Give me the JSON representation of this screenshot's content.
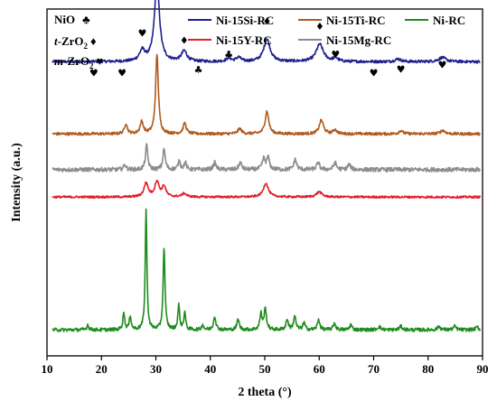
{
  "chart_data": {
    "type": "line",
    "xlabel": "2 theta (°)",
    "ylabel": "Intensity (a.u.)",
    "xlim": [
      10,
      90
    ],
    "xticks": [
      "10",
      "20",
      "30",
      "40",
      "50",
      "60",
      "70",
      "80",
      "90"
    ],
    "phase_key": [
      {
        "phase": "NiO",
        "symbol": "♣"
      },
      {
        "prefix": "t",
        "phase": "-ZrO",
        "sub": "2",
        "symbol": "♦"
      },
      {
        "prefix": "m",
        "phase": "-ZrO",
        "sub": "2",
        "symbol": "♥"
      }
    ],
    "legend": [
      {
        "name": "Ni-15Si-RC",
        "color": "#1f1f8c"
      },
      {
        "name": "Ni-15Ti-RC",
        "color": "#b05a1e"
      },
      {
        "name": "Ni-RC",
        "color": "#1e8c1e"
      },
      {
        "name": "Ni-15Y-RC",
        "color": "#e0202a"
      },
      {
        "name": "Ni-15Mg-RC",
        "color": "#8c8c8c"
      }
    ],
    "series": [
      {
        "name": "Ni-15Si-RC",
        "color": "#1f1f8c",
        "baseline": 0.848,
        "noise": 0.004,
        "peaks": [
          [
            27.5,
            0.03,
            0.6
          ],
          [
            30.2,
            0.23,
            0.55
          ],
          [
            35.2,
            0.03,
            0.6
          ],
          [
            43.4,
            0.01,
            0.5
          ],
          [
            45.2,
            0.012,
            0.5
          ],
          [
            50.4,
            0.065,
            0.7
          ],
          [
            60.1,
            0.05,
            0.8
          ],
          [
            63,
            0.01,
            0.5
          ],
          [
            74.5,
            0.008,
            0.6
          ],
          [
            82.6,
            0.012,
            0.8
          ]
        ]
      },
      {
        "name": "Ni-15Ti-RC",
        "color": "#b05a1e",
        "baseline": 0.64,
        "noise": 0.004,
        "peaks": [
          [
            24.5,
            0.03,
            0.3
          ],
          [
            27.4,
            0.035,
            0.35
          ],
          [
            30.2,
            0.23,
            0.3
          ],
          [
            35.3,
            0.03,
            0.35
          ],
          [
            45.4,
            0.015,
            0.4
          ],
          [
            50.4,
            0.065,
            0.4
          ],
          [
            60.4,
            0.04,
            0.45
          ],
          [
            62.9,
            0.012,
            0.4
          ],
          [
            75,
            0.01,
            0.4
          ],
          [
            82.7,
            0.01,
            0.5
          ]
        ]
      },
      {
        "name": "Ni-15Mg-RC",
        "color": "#8c8c8c",
        "baseline": 0.537,
        "noise": 0.006,
        "peaks": [
          [
            24.3,
            0.015,
            0.25
          ],
          [
            28.3,
            0.07,
            0.25
          ],
          [
            31.5,
            0.06,
            0.25
          ],
          [
            34.3,
            0.025,
            0.25
          ],
          [
            35.4,
            0.02,
            0.25
          ],
          [
            40.8,
            0.02,
            0.3
          ],
          [
            45.5,
            0.02,
            0.3
          ],
          [
            49.8,
            0.03,
            0.3
          ],
          [
            50.6,
            0.035,
            0.3
          ],
          [
            55.6,
            0.03,
            0.3
          ],
          [
            59.8,
            0.02,
            0.3
          ],
          [
            62.9,
            0.02,
            0.3
          ],
          [
            65.5,
            0.015,
            0.3
          ]
        ]
      },
      {
        "name": "Ni-15Y-RC",
        "color": "#e0202a",
        "baseline": 0.458,
        "noise": 0.003,
        "peaks": [
          [
            28.2,
            0.04,
            0.45
          ],
          [
            30.2,
            0.045,
            0.45
          ],
          [
            31.5,
            0.03,
            0.4
          ],
          [
            35.2,
            0.01,
            0.5
          ],
          [
            50.2,
            0.04,
            0.55
          ],
          [
            60,
            0.015,
            0.6
          ]
        ]
      },
      {
        "name": "Ni-RC",
        "color": "#1e8c1e",
        "baseline": 0.075,
        "noise": 0.005,
        "peaks": [
          [
            17.5,
            0.015,
            0.2
          ],
          [
            24.1,
            0.05,
            0.2
          ],
          [
            25.3,
            0.04,
            0.2
          ],
          [
            28.2,
            0.35,
            0.18
          ],
          [
            31.5,
            0.24,
            0.2
          ],
          [
            34.2,
            0.07,
            0.2
          ],
          [
            35.3,
            0.05,
            0.2
          ],
          [
            38.6,
            0.015,
            0.2
          ],
          [
            40.8,
            0.04,
            0.25
          ],
          [
            45.1,
            0.03,
            0.25
          ],
          [
            49.3,
            0.045,
            0.25
          ],
          [
            50.1,
            0.06,
            0.25
          ],
          [
            54.1,
            0.03,
            0.25
          ],
          [
            55.5,
            0.04,
            0.25
          ],
          [
            57.2,
            0.02,
            0.25
          ],
          [
            59.9,
            0.03,
            0.25
          ],
          [
            62.8,
            0.02,
            0.25
          ],
          [
            65.8,
            0.015,
            0.25
          ],
          [
            71,
            0.01,
            0.3
          ],
          [
            75,
            0.01,
            0.3
          ],
          [
            82,
            0.01,
            0.3
          ],
          [
            84.9,
            0.01,
            0.3
          ],
          [
            89,
            0.008,
            0.3
          ]
        ]
      }
    ],
    "markers": [
      {
        "x": 18.6,
        "level": 0.806,
        "symbol": "♥"
      },
      {
        "x": 23.8,
        "level": 0.806,
        "symbol": "♥"
      },
      {
        "x": 27.5,
        "level": 0.92,
        "symbol": "♥"
      },
      {
        "x": 30.2,
        "level": 1.145,
        "symbol": "♦"
      },
      {
        "x": 35.2,
        "level": 0.9,
        "symbol": "♦"
      },
      {
        "x": 37.8,
        "level": 0.815,
        "symbol": "♣"
      },
      {
        "x": 43.4,
        "level": 0.86,
        "symbol": "♣"
      },
      {
        "x": 50.4,
        "level": 0.955,
        "symbol": "♦"
      },
      {
        "x": 60.1,
        "level": 0.94,
        "symbol": "♦"
      },
      {
        "x": 63.0,
        "level": 0.86,
        "symbol": "♥"
      },
      {
        "x": 70.0,
        "level": 0.806,
        "symbol": "♥"
      },
      {
        "x": 75.0,
        "level": 0.817,
        "symbol": "♥"
      },
      {
        "x": 82.6,
        "level": 0.83,
        "symbol": "♥"
      }
    ]
  }
}
